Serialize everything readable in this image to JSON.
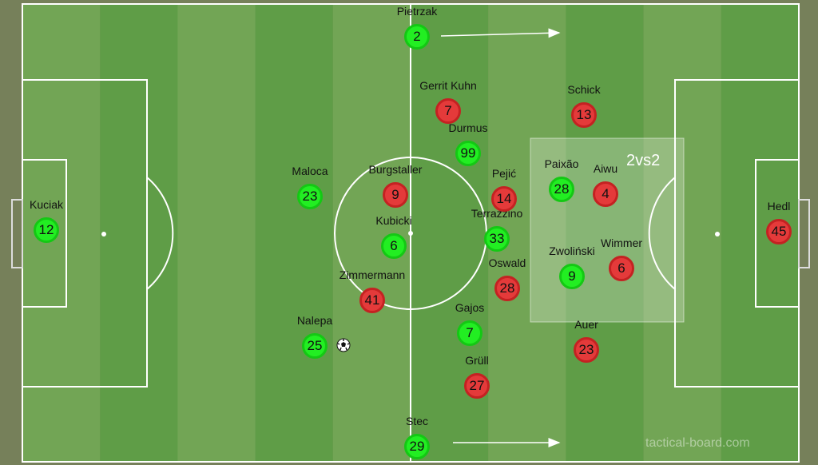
{
  "colors": {
    "team_green": "#22ee22",
    "team_red": "#e43a3a",
    "pitch_light": "#72a555",
    "pitch_dark": "#5f9d47"
  },
  "zone": {
    "label": "2vs2"
  },
  "watermark": "tactical-board.com",
  "players": [
    {
      "team": "green",
      "name": "Pietrzak",
      "number": "2"
    },
    {
      "team": "green",
      "name": "Kuciak",
      "number": "12"
    },
    {
      "team": "green",
      "name": "Maloca",
      "number": "23"
    },
    {
      "team": "green",
      "name": "Kubicki",
      "number": "6"
    },
    {
      "team": "green",
      "name": "Durmus",
      "number": "99"
    },
    {
      "team": "green",
      "name": "Terrazzino",
      "number": "33"
    },
    {
      "team": "green",
      "name": "Paixão",
      "number": "28"
    },
    {
      "team": "green",
      "name": "Zwoliński",
      "number": "9"
    },
    {
      "team": "green",
      "name": "Gajos",
      "number": "7"
    },
    {
      "team": "green",
      "name": "Nalepa",
      "number": "25"
    },
    {
      "team": "green",
      "name": "Stec",
      "number": "29"
    },
    {
      "team": "red",
      "name": "Gerrit Kuhn",
      "number": "7"
    },
    {
      "team": "red",
      "name": "Schick",
      "number": "13"
    },
    {
      "team": "red",
      "name": "Burgstaller",
      "number": "9"
    },
    {
      "team": "red",
      "name": "Pejić",
      "number": "14"
    },
    {
      "team": "red",
      "name": "Aiwu",
      "number": "4"
    },
    {
      "team": "red",
      "name": "Wimmer",
      "number": "6"
    },
    {
      "team": "red",
      "name": "Oswald",
      "number": "28"
    },
    {
      "team": "red",
      "name": "Zimmermann",
      "number": "41"
    },
    {
      "team": "red",
      "name": "Auer",
      "number": "23"
    },
    {
      "team": "red",
      "name": "Grüll",
      "number": "27"
    },
    {
      "team": "red",
      "name": "Hedl",
      "number": "45"
    }
  ]
}
